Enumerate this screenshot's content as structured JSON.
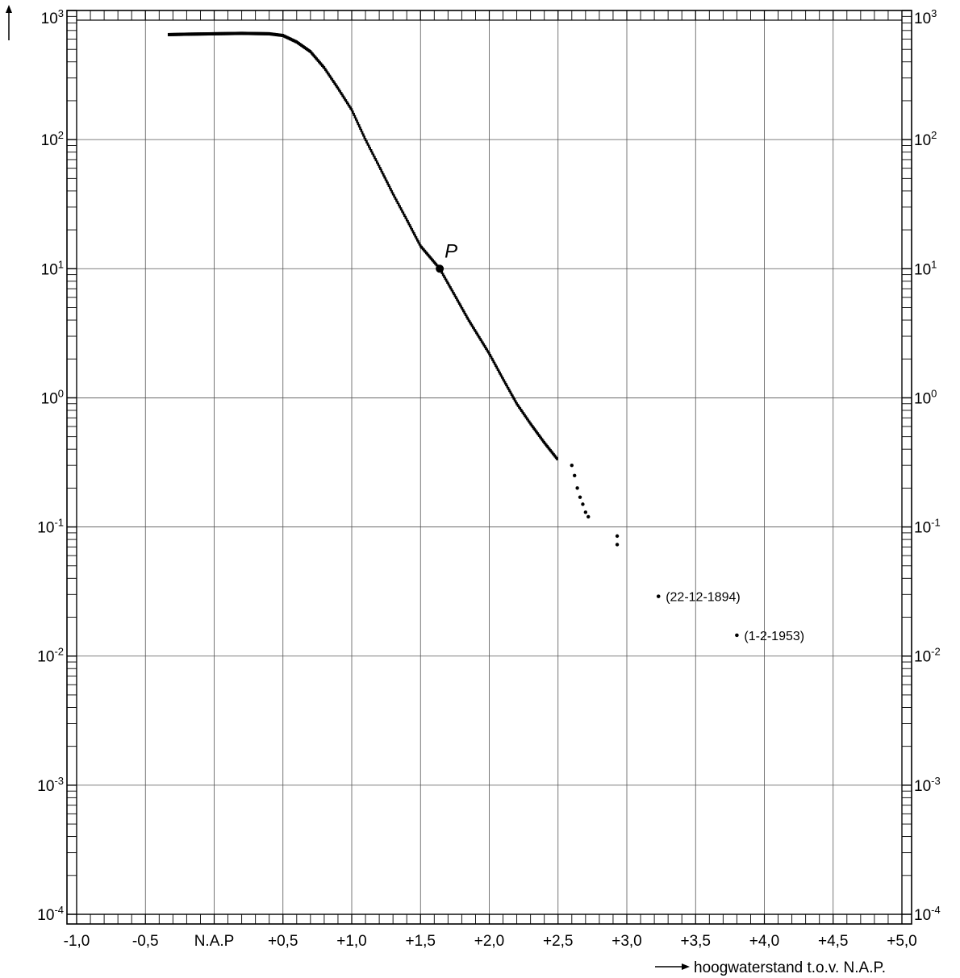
{
  "chart_data": {
    "type": "scatter",
    "title": "",
    "xlabel": "hoogwaterstand t.o.v. N.A.P.",
    "ylabel": "",
    "y_scale": "log",
    "xlim": [
      -1.0,
      5.0
    ],
    "ylim": [
      0.0001,
      1000
    ],
    "grid": true,
    "x_ticks": [
      {
        "value": -1.0,
        "label": "-1,0"
      },
      {
        "value": -0.5,
        "label": "-0,5"
      },
      {
        "value": 0.0,
        "label": "N.A.P"
      },
      {
        "value": 0.5,
        "label": "+0,5"
      },
      {
        "value": 1.0,
        "label": "+1,0"
      },
      {
        "value": 1.5,
        "label": "+1,5"
      },
      {
        "value": 2.0,
        "label": "+2,0"
      },
      {
        "value": 2.5,
        "label": "+2,5"
      },
      {
        "value": 3.0,
        "label": "+3,0"
      },
      {
        "value": 3.5,
        "label": "+3,5"
      },
      {
        "value": 4.0,
        "label": "+4,0"
      },
      {
        "value": 4.5,
        "label": "+4,5"
      },
      {
        "value": 5.0,
        "label": "+5,0"
      }
    ],
    "y_ticks": [
      {
        "value": 1000,
        "base": "10",
        "exp": "3"
      },
      {
        "value": 100,
        "base": "10",
        "exp": "2"
      },
      {
        "value": 10,
        "base": "10",
        "exp": "1"
      },
      {
        "value": 1,
        "base": "10",
        "exp": "0"
      },
      {
        "value": 0.1,
        "base": "10",
        "exp": "-1"
      },
      {
        "value": 0.01,
        "base": "10",
        "exp": "-2"
      },
      {
        "value": 0.001,
        "base": "10",
        "exp": "-3"
      },
      {
        "value": 0.0001,
        "base": "10",
        "exp": "-4"
      }
    ],
    "curve": {
      "x": [
        -0.33,
        -0.2,
        0.0,
        0.2,
        0.4,
        0.5,
        0.6,
        0.7,
        0.8,
        0.9,
        1.0,
        1.1,
        1.2,
        1.3,
        1.4,
        1.5,
        1.64,
        1.75,
        1.85,
        2.0,
        2.1,
        2.2,
        2.3,
        2.4,
        2.5
      ],
      "y": [
        650,
        655,
        660,
        665,
        660,
        640,
        570,
        480,
        360,
        250,
        170,
        100,
        62,
        38,
        24,
        15,
        10,
        6.2,
        4.0,
        2.2,
        1.4,
        0.9,
        0.63,
        0.45,
        0.33
      ]
    },
    "scattered_points": {
      "x": [
        2.6,
        2.62,
        2.64,
        2.66,
        2.68,
        2.7,
        2.72,
        2.93,
        2.93
      ],
      "y": [
        0.3,
        0.25,
        0.2,
        0.17,
        0.15,
        0.13,
        0.12,
        0.085,
        0.073
      ]
    },
    "highlight_point": {
      "x": 1.64,
      "y": 10,
      "label": "P"
    },
    "annotations": [
      {
        "x": 3.23,
        "y": 0.029,
        "label": "(22-12-1894)"
      },
      {
        "x": 3.8,
        "y": 0.0145,
        "label": "(1-2-1953)"
      }
    ]
  }
}
